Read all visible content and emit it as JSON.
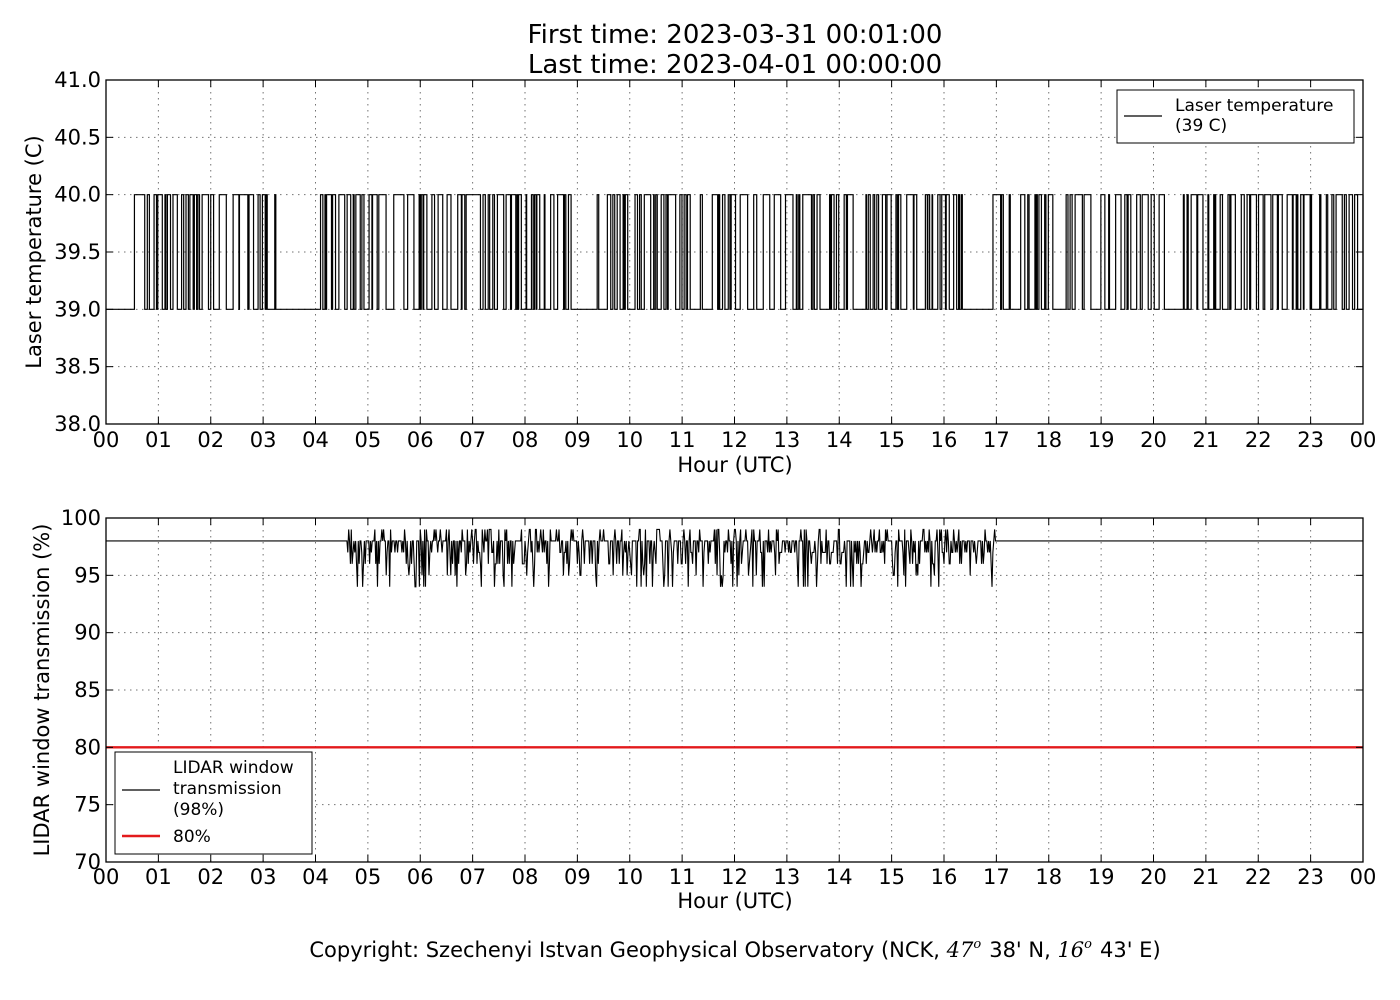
{
  "title": {
    "line1": "First time: 2023-03-31 00:01:00",
    "line2": "Last time: 2023-04-01 00:00:00"
  },
  "copyright": {
    "prefix": "Copyright: Szechenyi Istvan Geophysical Observatory (NCK, ",
    "lat_deg": "47",
    "lat_min": "38' N, ",
    "lon_deg": "16",
    "lon_min": "43' E)",
    "degree_mark": "o"
  },
  "chart_data": [
    {
      "type": "line",
      "xlabel": "Hour (UTC)",
      "ylabel": "Laser temperature (C)",
      "xlim": [
        0,
        24
      ],
      "ylim": [
        38.0,
        41.0
      ],
      "x_tick_labels": [
        "00",
        "01",
        "02",
        "03",
        "04",
        "05",
        "06",
        "07",
        "08",
        "09",
        "10",
        "11",
        "12",
        "13",
        "14",
        "15",
        "16",
        "17",
        "18",
        "19",
        "20",
        "21",
        "22",
        "23",
        "00"
      ],
      "y_ticks": [
        38.0,
        38.5,
        39.0,
        39.5,
        40.0,
        40.5,
        41.0
      ],
      "y_tick_labels": [
        "38.0",
        "38.5",
        "39.0",
        "39.5",
        "40.0",
        "40.5",
        "41.0"
      ],
      "grid": true,
      "legend_position": "top-right",
      "series": [
        {
          "name": "Laser temperature\n(39 C)",
          "legend_lines": [
            "Laser temperature",
            "(39 C)"
          ],
          "color": "#000000",
          "value_levels": [
            39.0,
            40.0
          ],
          "dense_toggling_hours": [
            [
              0.5,
              3.2
            ],
            [
              4.05,
              8.85
            ],
            [
              9.3,
              16.3
            ],
            [
              16.8,
              19.05
            ],
            [
              19.1,
              20.2
            ],
            [
              20.5,
              24.0
            ]
          ]
        }
      ]
    },
    {
      "type": "line",
      "xlabel": "Hour (UTC)",
      "ylabel": "LIDAR window transmission (%)",
      "xlim": [
        0,
        24
      ],
      "ylim": [
        70,
        100
      ],
      "x_tick_labels": [
        "00",
        "01",
        "02",
        "03",
        "04",
        "05",
        "06",
        "07",
        "08",
        "09",
        "10",
        "11",
        "12",
        "13",
        "14",
        "15",
        "16",
        "17",
        "18",
        "19",
        "20",
        "21",
        "22",
        "23",
        "00"
      ],
      "y_ticks": [
        70,
        75,
        80,
        85,
        90,
        95,
        100
      ],
      "y_tick_labels": [
        "70",
        "75",
        "80",
        "85",
        "90",
        "95",
        "100"
      ],
      "grid": true,
      "legend_position": "bottom-left",
      "series": [
        {
          "name": "LIDAR window\ntransmission\n(98%)",
          "legend_lines": [
            "LIDAR window",
            "transmission",
            "(98%)"
          ],
          "color": "#000000",
          "baseline": 98,
          "noisy_hours": [
            4.6,
            17.0
          ],
          "min_value": 93,
          "max_value": 99
        },
        {
          "name": "80%",
          "legend_lines": [
            "80%"
          ],
          "color": "#e31a1c",
          "constant": 80
        }
      ]
    }
  ]
}
